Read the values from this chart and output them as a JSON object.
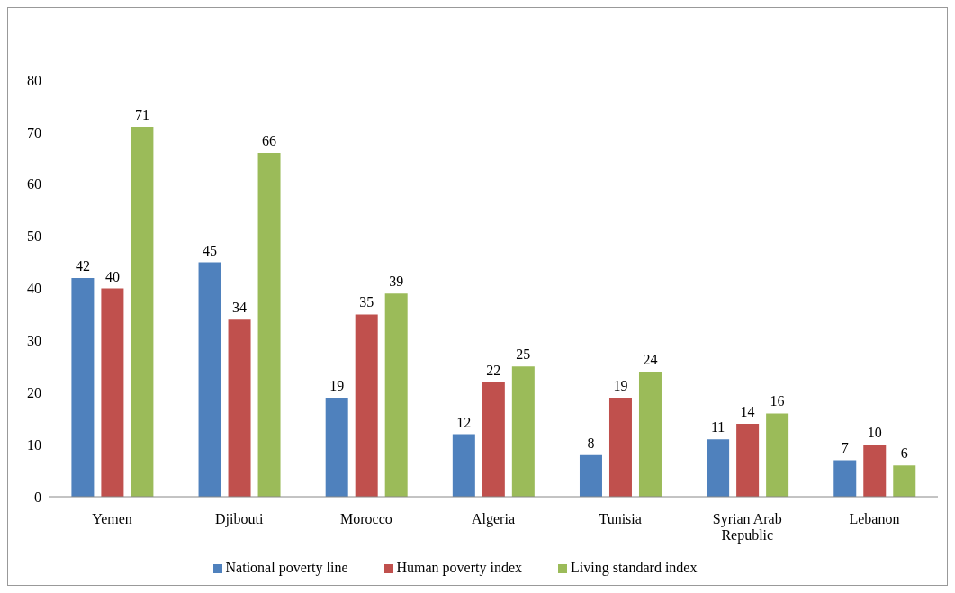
{
  "chart_data": {
    "type": "bar",
    "categories": [
      "Yemen",
      "Djibouti",
      "Morocco",
      "Algeria",
      "Tunisia",
      "Syrian Arab Republic",
      "Lebanon"
    ],
    "series": [
      {
        "name": "National poverty line",
        "color": "#4f81bd",
        "values": [
          42,
          45,
          19,
          12,
          8,
          11,
          7
        ]
      },
      {
        "name": "Human poverty index",
        "color": "#c0504d",
        "values": [
          40,
          34,
          35,
          22,
          19,
          14,
          10
        ]
      },
      {
        "name": "Living standard index",
        "color": "#9bbb59",
        "values": [
          71,
          66,
          39,
          25,
          24,
          16,
          6
        ]
      }
    ],
    "ylim": [
      0,
      80
    ],
    "yticks": [
      0,
      10,
      20,
      30,
      40,
      50,
      60,
      70,
      80
    ],
    "grid": false,
    "legend": "bottom",
    "data_labels": true
  }
}
